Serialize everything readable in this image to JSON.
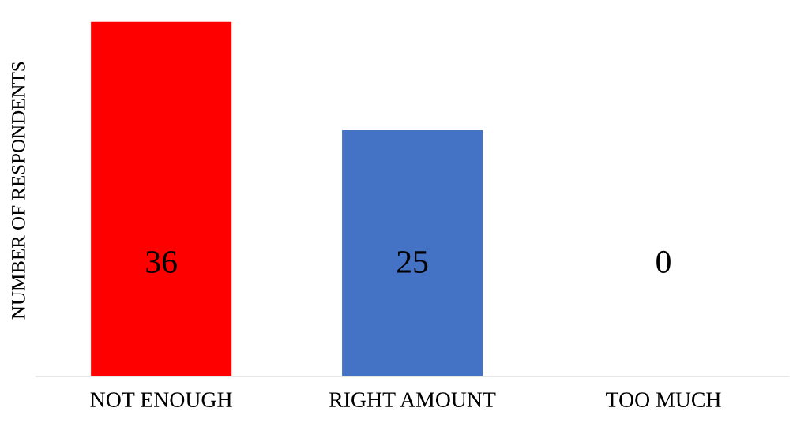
{
  "chart_data": {
    "type": "bar",
    "ylabel": "NUMBER OF RESPONDENTS",
    "categories": [
      "NOT ENOUGH",
      "RIGHT AMOUNT",
      "TOO MUCH"
    ],
    "values": [
      36,
      25,
      0
    ],
    "colors": [
      "#ff0000",
      "#4472c4",
      "#a5a5a5"
    ],
    "data_labels": true,
    "grid": false,
    "legend": false,
    "tick_labels": "x"
  }
}
